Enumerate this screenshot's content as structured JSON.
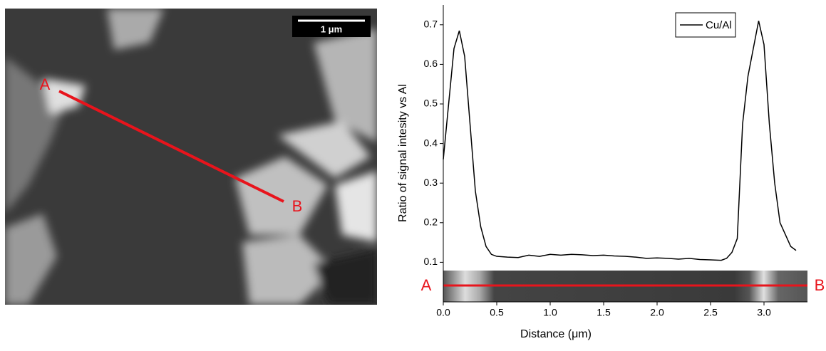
{
  "chart_data": {
    "type": "line",
    "x_label": "Distance (μm)",
    "y_label": "Ratio of signal intesity vs Al",
    "x": [
      0,
      0.05,
      0.1,
      0.15,
      0.2,
      0.25,
      0.3,
      0.35,
      0.4,
      0.45,
      0.5,
      0.6,
      0.7,
      0.8,
      0.9,
      1.0,
      1.1,
      1.2,
      1.3,
      1.4,
      1.5,
      1.6,
      1.7,
      1.8,
      1.9,
      2.0,
      2.1,
      2.2,
      2.3,
      2.4,
      2.5,
      2.6,
      2.65,
      2.7,
      2.75,
      2.8,
      2.85,
      2.9,
      2.95,
      3.0,
      3.05,
      3.1,
      3.15,
      3.2,
      3.25,
      3.3
    ],
    "series": [
      {
        "name": "Cu/Al",
        "color": "#000000",
        "values": [
          0.36,
          0.5,
          0.64,
          0.685,
          0.62,
          0.45,
          0.28,
          0.19,
          0.14,
          0.12,
          0.115,
          0.113,
          0.112,
          0.118,
          0.115,
          0.12,
          0.118,
          0.12,
          0.119,
          0.117,
          0.118,
          0.116,
          0.115,
          0.113,
          0.11,
          0.111,
          0.11,
          0.108,
          0.11,
          0.107,
          0.106,
          0.105,
          0.11,
          0.125,
          0.16,
          0.45,
          0.57,
          0.64,
          0.71,
          0.65,
          0.45,
          0.3,
          0.2,
          0.17,
          0.14,
          0.13
        ]
      }
    ],
    "xlim": [
      0,
      3.4
    ],
    "ylim": [
      0,
      0.75
    ],
    "xticks": [
      {
        "value": 0,
        "label": "0.0"
      },
      0.5,
      {
        "value": 1,
        "label": "1.0"
      },
      1.5,
      {
        "value": 2,
        "label": "2.0"
      },
      2.5,
      {
        "value": 3,
        "label": "3.0"
      }
    ],
    "yticks": [
      0.1,
      0.2,
      0.3,
      0.4,
      0.5,
      0.6,
      0.7
    ],
    "legend": "top-right",
    "annotations": {
      "scale_bar": "1 μm",
      "point_a": "A",
      "point_b": "B"
    }
  }
}
